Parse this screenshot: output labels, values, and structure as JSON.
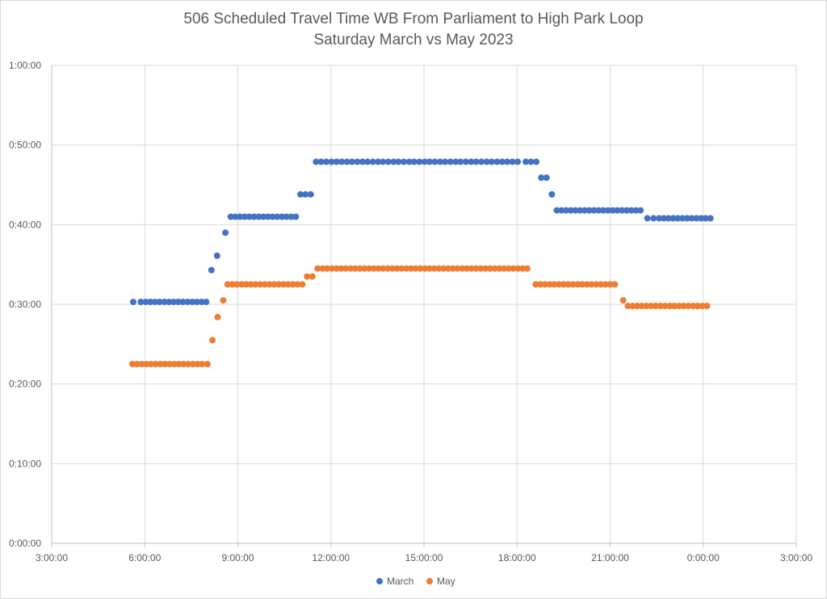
{
  "chart_data": {
    "type": "scatter",
    "title": "506 Scheduled Travel Time WB From Parliament to High Park Loop",
    "subtitle": "Saturday March vs May 2023",
    "xlabel": "",
    "ylabel": "",
    "x_unit": "hours after midnight (time of day)",
    "xlim": [
      3,
      27
    ],
    "ylim": [
      0,
      60
    ],
    "x_ticks": [
      3,
      6,
      9,
      12,
      15,
      18,
      21,
      24,
      27
    ],
    "x_tick_labels": [
      "3:00:00",
      "6:00:00",
      "9:00:00",
      "12:00:00",
      "15:00:00",
      "18:00:00",
      "21:00:00",
      "0:00:00",
      "3:00:00"
    ],
    "y_ticks": [
      0,
      10,
      20,
      30,
      40,
      50,
      60
    ],
    "y_tick_labels": [
      "0:00:00",
      "0:10:00",
      "0:20:00",
      "0:30:00",
      "0:40:00",
      "0:50:00",
      "1:00:00"
    ],
    "grid": true,
    "legend_position": "bottom",
    "series": [
      {
        "name": "March",
        "color": "#4472c4",
        "x": [
          5.63,
          5.87,
          6.03,
          6.18,
          6.33,
          6.48,
          6.63,
          6.78,
          6.93,
          7.08,
          7.23,
          7.38,
          7.53,
          7.68,
          7.83,
          7.98,
          8.15,
          8.33,
          8.6,
          8.77,
          8.92,
          9.07,
          9.22,
          9.37,
          9.52,
          9.67,
          9.82,
          9.97,
          10.12,
          10.27,
          10.42,
          10.57,
          10.72,
          10.87,
          11.02,
          11.18,
          11.35,
          11.52,
          11.68,
          11.85,
          12.02,
          12.18,
          12.35,
          12.52,
          12.68,
          12.85,
          13.02,
          13.18,
          13.35,
          13.52,
          13.68,
          13.85,
          14.02,
          14.18,
          14.35,
          14.52,
          14.68,
          14.85,
          15.02,
          15.18,
          15.35,
          15.52,
          15.68,
          15.85,
          16.02,
          16.18,
          16.35,
          16.52,
          16.68,
          16.85,
          17.02,
          17.18,
          17.35,
          17.52,
          17.68,
          17.85,
          18.02,
          18.28,
          18.45,
          18.62,
          18.78,
          18.95,
          19.12,
          19.28,
          19.43,
          19.58,
          19.73,
          19.88,
          20.03,
          20.18,
          20.33,
          20.48,
          20.63,
          20.78,
          20.93,
          21.08,
          21.23,
          21.38,
          21.53,
          21.68,
          21.83,
          21.98,
          22.2,
          22.4,
          22.58,
          22.73,
          22.88,
          23.03,
          23.18,
          23.33,
          23.48,
          23.63,
          23.78,
          23.93,
          24.08,
          24.23
        ],
        "y": [
          30.3,
          30.3,
          30.3,
          30.3,
          30.3,
          30.3,
          30.3,
          30.3,
          30.3,
          30.3,
          30.3,
          30.3,
          30.3,
          30.3,
          30.3,
          30.3,
          34.3,
          36.1,
          39.0,
          41.0,
          41.0,
          41.0,
          41.0,
          41.0,
          41.0,
          41.0,
          41.0,
          41.0,
          41.0,
          41.0,
          41.0,
          41.0,
          41.0,
          41.0,
          43.8,
          43.8,
          43.8,
          47.9,
          47.9,
          47.9,
          47.9,
          47.9,
          47.9,
          47.9,
          47.9,
          47.9,
          47.9,
          47.9,
          47.9,
          47.9,
          47.9,
          47.9,
          47.9,
          47.9,
          47.9,
          47.9,
          47.9,
          47.9,
          47.9,
          47.9,
          47.9,
          47.9,
          47.9,
          47.9,
          47.9,
          47.9,
          47.9,
          47.9,
          47.9,
          47.9,
          47.9,
          47.9,
          47.9,
          47.9,
          47.9,
          47.9,
          47.9,
          47.9,
          47.9,
          47.9,
          45.9,
          45.9,
          43.8,
          41.8,
          41.8,
          41.8,
          41.8,
          41.8,
          41.8,
          41.8,
          41.8,
          41.8,
          41.8,
          41.8,
          41.8,
          41.8,
          41.8,
          41.8,
          41.8,
          41.8,
          41.8,
          41.8,
          40.8,
          40.8,
          40.8,
          40.8,
          40.8,
          40.8,
          40.8,
          40.8,
          40.8,
          40.8,
          40.8,
          40.8,
          40.8,
          40.8
        ]
      },
      {
        "name": "May",
        "color": "#ed7d31",
        "x": [
          5.6,
          5.75,
          5.9,
          6.05,
          6.2,
          6.35,
          6.5,
          6.65,
          6.8,
          6.95,
          7.1,
          7.25,
          7.4,
          7.55,
          7.7,
          7.85,
          8.02,
          8.18,
          8.35,
          8.53,
          8.67,
          8.82,
          8.97,
          9.12,
          9.27,
          9.42,
          9.57,
          9.72,
          9.87,
          10.02,
          10.17,
          10.32,
          10.47,
          10.62,
          10.77,
          10.92,
          11.08,
          11.23,
          11.4,
          11.57,
          11.73,
          11.88,
          12.03,
          12.18,
          12.33,
          12.48,
          12.63,
          12.78,
          12.93,
          13.08,
          13.23,
          13.38,
          13.53,
          13.68,
          13.83,
          13.98,
          14.13,
          14.28,
          14.43,
          14.58,
          14.73,
          14.88,
          15.03,
          15.18,
          15.33,
          15.48,
          15.63,
          15.78,
          15.93,
          16.08,
          16.23,
          16.38,
          16.53,
          16.68,
          16.83,
          16.98,
          17.13,
          17.28,
          17.43,
          17.58,
          17.73,
          17.88,
          18.03,
          18.18,
          18.33,
          18.6,
          18.75,
          18.9,
          19.05,
          19.2,
          19.35,
          19.5,
          19.65,
          19.8,
          19.95,
          20.1,
          20.25,
          20.4,
          20.55,
          20.7,
          20.85,
          21.0,
          21.15,
          21.42,
          21.57,
          21.72,
          21.87,
          22.02,
          22.17,
          22.32,
          22.47,
          22.62,
          22.77,
          22.92,
          23.07,
          23.22,
          23.37,
          23.52,
          23.67,
          23.82,
          23.97,
          24.12
        ],
        "y": [
          22.5,
          22.5,
          22.5,
          22.5,
          22.5,
          22.5,
          22.5,
          22.5,
          22.5,
          22.5,
          22.5,
          22.5,
          22.5,
          22.5,
          22.5,
          22.5,
          22.5,
          25.5,
          28.4,
          30.5,
          32.5,
          32.5,
          32.5,
          32.5,
          32.5,
          32.5,
          32.5,
          32.5,
          32.5,
          32.5,
          32.5,
          32.5,
          32.5,
          32.5,
          32.5,
          32.5,
          32.5,
          33.5,
          33.5,
          34.5,
          34.5,
          34.5,
          34.5,
          34.5,
          34.5,
          34.5,
          34.5,
          34.5,
          34.5,
          34.5,
          34.5,
          34.5,
          34.5,
          34.5,
          34.5,
          34.5,
          34.5,
          34.5,
          34.5,
          34.5,
          34.5,
          34.5,
          34.5,
          34.5,
          34.5,
          34.5,
          34.5,
          34.5,
          34.5,
          34.5,
          34.5,
          34.5,
          34.5,
          34.5,
          34.5,
          34.5,
          34.5,
          34.5,
          34.5,
          34.5,
          34.5,
          34.5,
          34.5,
          34.5,
          34.5,
          32.5,
          32.5,
          32.5,
          32.5,
          32.5,
          32.5,
          32.5,
          32.5,
          32.5,
          32.5,
          32.5,
          32.5,
          32.5,
          32.5,
          32.5,
          32.5,
          32.5,
          32.5,
          30.5,
          29.8,
          29.8,
          29.8,
          29.8,
          29.8,
          29.8,
          29.8,
          29.8,
          29.8,
          29.8,
          29.8,
          29.8,
          29.8,
          29.8,
          29.8,
          29.8,
          29.8,
          29.8
        ]
      }
    ]
  }
}
